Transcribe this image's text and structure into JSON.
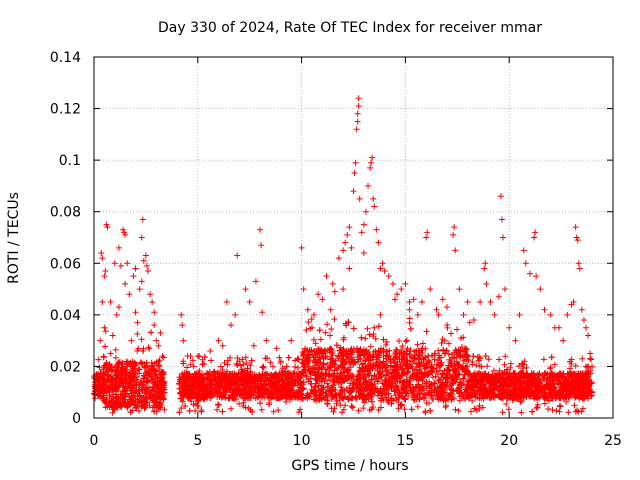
{
  "chart_data": {
    "type": "scatter",
    "title": "Day 330 of 2024, Rate Of TEC Index for receiver mmar",
    "xlabel": "GPS time / hours",
    "ylabel": "ROTI / TECUs",
    "xlim": [
      0,
      25
    ],
    "ylim": [
      0,
      0.14
    ],
    "xticks": [
      0,
      5,
      10,
      15,
      20,
      25
    ],
    "xtick_labels": [
      "0",
      "5",
      "10",
      "15",
      "20",
      "25"
    ],
    "yticks": [
      0,
      0.02,
      0.04,
      0.06,
      0.08,
      0.1,
      0.12,
      0.14
    ],
    "ytick_labels": [
      "0",
      "0.02",
      "0.04",
      "0.06",
      "0.08",
      "0.1",
      "0.12",
      "0.14"
    ],
    "grid": true,
    "marker": "+",
    "color": "#ff0000",
    "series": [
      {
        "points": [
          [
            0.1,
            0.012
          ],
          [
            0.2,
            0.009
          ],
          [
            0.3,
            0.015
          ],
          [
            0.35,
            0.064
          ],
          [
            0.4,
            0.062
          ],
          [
            0.5,
            0.055
          ],
          [
            0.5,
            0.035
          ],
          [
            0.55,
            0.057
          ],
          [
            0.6,
            0.02
          ],
          [
            0.7,
            0.011
          ],
          [
            0.4,
            0.045
          ],
          [
            0.3,
            0.03
          ],
          [
            0.6,
            0.075
          ],
          [
            0.65,
            0.074
          ],
          [
            0.8,
            0.025
          ],
          [
            0.9,
            0.032
          ],
          [
            1.0,
            0.018
          ],
          [
            1.1,
            0.04
          ],
          [
            1.2,
            0.043
          ],
          [
            1.3,
            0.059
          ],
          [
            1.4,
            0.073
          ],
          [
            1.45,
            0.072
          ],
          [
            1.5,
            0.071
          ],
          [
            1.6,
            0.06
          ],
          [
            1.7,
            0.048
          ],
          [
            1.8,
            0.03
          ],
          [
            1.9,
            0.055
          ],
          [
            2.0,
            0.041
          ],
          [
            2.1,
            0.037
          ],
          [
            2.2,
            0.05
          ],
          [
            2.3,
            0.07
          ],
          [
            2.35,
            0.077
          ],
          [
            2.4,
            0.061
          ],
          [
            2.5,
            0.063
          ],
          [
            2.55,
            0.059
          ],
          [
            2.6,
            0.057
          ],
          [
            2.7,
            0.048
          ],
          [
            2.8,
            0.045
          ],
          [
            2.9,
            0.036
          ],
          [
            3.0,
            0.03
          ],
          [
            3.1,
            0.028
          ],
          [
            3.2,
            0.033
          ],
          [
            3.3,
            0.024
          ],
          [
            1.5,
            0.052
          ],
          [
            1.0,
            0.06
          ],
          [
            0.8,
            0.045
          ],
          [
            2.0,
            0.058
          ],
          [
            1.2,
            0.066
          ],
          [
            2.3,
            0.053
          ],
          [
            2.9,
            0.041
          ],
          [
            4.2,
            0.04
          ],
          [
            4.25,
            0.036
          ],
          [
            4.3,
            0.03
          ],
          [
            4.3,
            0.022
          ],
          [
            4.5,
            0.014
          ],
          [
            4.8,
            0.02
          ],
          [
            5.0,
            0.024
          ],
          [
            5.3,
            0.021
          ],
          [
            5.6,
            0.026
          ],
          [
            5.8,
            0.018
          ],
          [
            6.0,
            0.03
          ],
          [
            6.2,
            0.028
          ],
          [
            6.4,
            0.045
          ],
          [
            6.6,
            0.036
          ],
          [
            6.8,
            0.04
          ],
          [
            6.9,
            0.063
          ],
          [
            7.0,
            0.022
          ],
          [
            7.3,
            0.05
          ],
          [
            7.5,
            0.045
          ],
          [
            7.7,
            0.028
          ],
          [
            7.8,
            0.053
          ],
          [
            8.0,
            0.073
          ],
          [
            8.05,
            0.067
          ],
          [
            8.1,
            0.041
          ],
          [
            8.3,
            0.03
          ],
          [
            8.5,
            0.014
          ],
          [
            8.8,
            0.027
          ],
          [
            9.0,
            0.022
          ],
          [
            9.2,
            0.018
          ],
          [
            9.5,
            0.03
          ],
          [
            9.8,
            0.023
          ],
          [
            10.0,
            0.066
          ],
          [
            10.1,
            0.05
          ],
          [
            10.3,
            0.042
          ],
          [
            10.5,
            0.035
          ],
          [
            10.8,
            0.048
          ],
          [
            11.0,
            0.046
          ],
          [
            11.2,
            0.055
          ],
          [
            11.4,
            0.042
          ],
          [
            11.6,
            0.049
          ],
          [
            11.8,
            0.062
          ],
          [
            12.0,
            0.065
          ],
          [
            12.1,
            0.068
          ],
          [
            12.2,
            0.071
          ],
          [
            12.3,
            0.074
          ],
          [
            12.4,
            0.066
          ],
          [
            12.5,
            0.088
          ],
          [
            12.55,
            0.095
          ],
          [
            12.6,
            0.099
          ],
          [
            12.65,
            0.112
          ],
          [
            12.7,
            0.115
          ],
          [
            12.7,
            0.118
          ],
          [
            12.75,
            0.121
          ],
          [
            12.75,
            0.124
          ],
          [
            12.8,
            0.085
          ],
          [
            12.9,
            0.072
          ],
          [
            13.0,
            0.075
          ],
          [
            13.1,
            0.08
          ],
          [
            13.2,
            0.09
          ],
          [
            13.3,
            0.097
          ],
          [
            13.35,
            0.099
          ],
          [
            13.4,
            0.101
          ],
          [
            13.45,
            0.085
          ],
          [
            13.5,
            0.082
          ],
          [
            13.6,
            0.073
          ],
          [
            13.7,
            0.068
          ],
          [
            13.8,
            0.058
          ],
          [
            13.9,
            0.06
          ],
          [
            14.0,
            0.057
          ],
          [
            14.2,
            0.055
          ],
          [
            14.4,
            0.052
          ],
          [
            14.6,
            0.048
          ],
          [
            14.8,
            0.05
          ],
          [
            15.0,
            0.052
          ],
          [
            15.2,
            0.045
          ],
          [
            15.4,
            0.046
          ],
          [
            15.6,
            0.04
          ],
          [
            15.8,
            0.045
          ],
          [
            16.0,
            0.07
          ],
          [
            16.05,
            0.072
          ],
          [
            16.2,
            0.05
          ],
          [
            16.5,
            0.042
          ],
          [
            16.8,
            0.046
          ],
          [
            17.0,
            0.043
          ],
          [
            17.3,
            0.071
          ],
          [
            17.35,
            0.074
          ],
          [
            17.4,
            0.065
          ],
          [
            17.6,
            0.05
          ],
          [
            17.8,
            0.04
          ],
          [
            18.0,
            0.045
          ],
          [
            18.3,
            0.038
          ],
          [
            18.6,
            0.045
          ],
          [
            18.8,
            0.058
          ],
          [
            18.85,
            0.06
          ],
          [
            18.9,
            0.052
          ],
          [
            19.1,
            0.045
          ],
          [
            19.3,
            0.04
          ],
          [
            19.5,
            0.047
          ],
          [
            19.6,
            0.086
          ],
          [
            19.65,
            0.077
          ],
          [
            19.7,
            0.07
          ],
          [
            19.8,
            0.05
          ],
          [
            20.0,
            0.035
          ],
          [
            20.3,
            0.03
          ],
          [
            20.5,
            0.04
          ],
          [
            20.7,
            0.065
          ],
          [
            20.8,
            0.06
          ],
          [
            21.0,
            0.056
          ],
          [
            21.2,
            0.07
          ],
          [
            21.25,
            0.072
          ],
          [
            21.3,
            0.055
          ],
          [
            21.5,
            0.05
          ],
          [
            21.7,
            0.042
          ],
          [
            22.0,
            0.04
          ],
          [
            22.2,
            0.035
          ],
          [
            22.4,
            0.035
          ],
          [
            22.6,
            0.03
          ],
          [
            22.8,
            0.04
          ],
          [
            23.0,
            0.044
          ],
          [
            23.1,
            0.045
          ],
          [
            23.2,
            0.074
          ],
          [
            23.25,
            0.07
          ],
          [
            23.3,
            0.069
          ],
          [
            23.35,
            0.06
          ],
          [
            23.4,
            0.058
          ],
          [
            23.5,
            0.042
          ],
          [
            23.6,
            0.038
          ],
          [
            23.7,
            0.035
          ],
          [
            23.8,
            0.032
          ],
          [
            23.9,
            0.025
          ],
          [
            13.8,
            0.04
          ],
          [
            15.2,
            0.042
          ],
          [
            12.0,
            0.05
          ],
          [
            11.5,
            0.052
          ],
          [
            14.5,
            0.046
          ],
          [
            16.6,
            0.04
          ],
          [
            18.1,
            0.037
          ],
          [
            10.6,
            0.04
          ],
          [
            13.0,
            0.064
          ],
          [
            12.3,
            0.058
          ]
        ]
      }
    ]
  }
}
